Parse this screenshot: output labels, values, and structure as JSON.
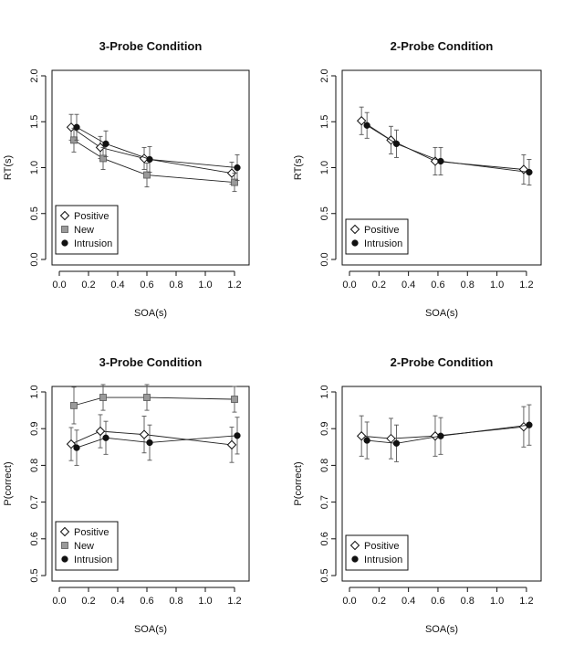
{
  "chart_data": [
    {
      "type": "line",
      "title": "3-Probe Condition",
      "xlabel": "SOA(s)",
      "ylabel": "RT(s)",
      "xlim": [
        0,
        1.25
      ],
      "ylim": [
        0,
        2.0
      ],
      "xticks": [
        0.0,
        0.2,
        0.4,
        0.6,
        0.8,
        1.0,
        1.2
      ],
      "xtick_labels": [
        "0.0",
        "0.2",
        "0.4",
        "0.6",
        "0.8",
        "1.0",
        "1.2"
      ],
      "yticks": [
        0.0,
        0.5,
        1.0,
        1.5,
        2.0
      ],
      "ytick_labels": [
        "0.0",
        "0.5",
        "1.0",
        "1.5",
        "2.0"
      ],
      "legend": {
        "position": "bottom-left",
        "entries": [
          "Positive",
          "New",
          "Intrusion"
        ]
      },
      "series": [
        {
          "name": "Positive",
          "marker": "diamond-open",
          "x": [
            0.1,
            0.3,
            0.6,
            1.2
          ],
          "values": [
            1.44,
            1.22,
            1.1,
            0.94
          ],
          "error": [
            0.14,
            0.12,
            0.12,
            0.12
          ]
        },
        {
          "name": "New",
          "marker": "square-gray",
          "x": [
            0.1,
            0.3,
            0.6,
            1.2
          ],
          "values": [
            1.3,
            1.1,
            0.92,
            0.84
          ],
          "error": [
            0.13,
            0.12,
            0.13,
            0.1
          ]
        },
        {
          "name": "Intrusion",
          "marker": "circle-filled",
          "x": [
            0.1,
            0.3,
            0.6,
            1.2
          ],
          "values": [
            1.44,
            1.26,
            1.09,
            1.0
          ],
          "error": [
            0.14,
            0.14,
            0.14,
            0.14
          ]
        }
      ]
    },
    {
      "type": "line",
      "title": "2-Probe Condition",
      "xlabel": "SOA(s)",
      "ylabel": "RT(s)",
      "xlim": [
        0,
        1.25
      ],
      "ylim": [
        0,
        2.0
      ],
      "xticks": [
        0.0,
        0.2,
        0.4,
        0.6,
        0.8,
        1.0,
        1.2
      ],
      "xtick_labels": [
        "0.0",
        "0.2",
        "0.4",
        "0.6",
        "0.8",
        "1.0",
        "1.2"
      ],
      "yticks": [
        0.0,
        0.5,
        1.0,
        1.5,
        2.0
      ],
      "ytick_labels": [
        "0.0",
        "0.5",
        "1.0",
        "1.5",
        "2.0"
      ],
      "legend": {
        "position": "bottom-left",
        "entries": [
          "Positive",
          "Intrusion"
        ]
      },
      "series": [
        {
          "name": "Positive",
          "marker": "diamond-open",
          "x": [
            0.1,
            0.3,
            0.6,
            1.2
          ],
          "values": [
            1.51,
            1.3,
            1.07,
            0.98
          ],
          "error": [
            0.15,
            0.15,
            0.15,
            0.16
          ]
        },
        {
          "name": "Intrusion",
          "marker": "circle-filled",
          "x": [
            0.1,
            0.3,
            0.6,
            1.2
          ],
          "values": [
            1.46,
            1.26,
            1.07,
            0.95
          ],
          "error": [
            0.14,
            0.15,
            0.15,
            0.14
          ]
        }
      ]
    },
    {
      "type": "line",
      "title": "3-Probe Condition",
      "xlabel": "SOA(s)",
      "ylabel": "P(correct)",
      "xlim": [
        0,
        1.25
      ],
      "ylim": [
        0.5,
        1.0
      ],
      "xticks": [
        0.0,
        0.2,
        0.4,
        0.6,
        0.8,
        1.0,
        1.2
      ],
      "xtick_labels": [
        "0.0",
        "0.2",
        "0.4",
        "0.6",
        "0.8",
        "1.0",
        "1.2"
      ],
      "yticks": [
        0.5,
        0.6,
        0.7,
        0.8,
        0.9,
        1.0
      ],
      "ytick_labels": [
        "0.5",
        "0.6",
        "0.7",
        "0.8",
        "0.9",
        "1.0"
      ],
      "legend": {
        "position": "bottom-left",
        "entries": [
          "Positive",
          "New",
          "Intrusion"
        ]
      },
      "series": [
        {
          "name": "Positive",
          "marker": "diamond-open",
          "x": [
            0.1,
            0.3,
            0.6,
            1.2
          ],
          "values": [
            0.858,
            0.893,
            0.884,
            0.856
          ],
          "error": [
            0.045,
            0.045,
            0.05,
            0.048
          ]
        },
        {
          "name": "New",
          "marker": "square-gray",
          "x": [
            0.1,
            0.3,
            0.6,
            1.2
          ],
          "values": [
            0.963,
            0.985,
            0.985,
            0.98
          ],
          "error": [
            0.05,
            0.035,
            0.035,
            0.035
          ]
        },
        {
          "name": "Intrusion",
          "marker": "circle-filled",
          "x": [
            0.1,
            0.3,
            0.6,
            1.2
          ],
          "values": [
            0.848,
            0.875,
            0.862,
            0.881
          ],
          "error": [
            0.048,
            0.045,
            0.048,
            0.05
          ]
        }
      ]
    },
    {
      "type": "line",
      "title": "2-Probe Condition",
      "xlabel": "SOA(s)",
      "ylabel": "P(correct)",
      "xlim": [
        0,
        1.25
      ],
      "ylim": [
        0.5,
        1.0
      ],
      "xticks": [
        0.0,
        0.2,
        0.4,
        0.6,
        0.8,
        1.0,
        1.2
      ],
      "xtick_labels": [
        "0.0",
        "0.2",
        "0.4",
        "0.6",
        "0.8",
        "1.0",
        "1.2"
      ],
      "yticks": [
        0.5,
        0.6,
        0.7,
        0.8,
        0.9,
        1.0
      ],
      "ytick_labels": [
        "0.5",
        "0.6",
        "0.7",
        "0.8",
        "0.9",
        "1.0"
      ],
      "legend": {
        "position": "bottom-left",
        "entries": [
          "Positive",
          "Intrusion"
        ]
      },
      "series": [
        {
          "name": "Positive",
          "marker": "diamond-open",
          "x": [
            0.1,
            0.3,
            0.6,
            1.2
          ],
          "values": [
            0.88,
            0.873,
            0.88,
            0.905
          ],
          "error": [
            0.055,
            0.055,
            0.055,
            0.055
          ]
        },
        {
          "name": "Intrusion",
          "marker": "circle-filled",
          "x": [
            0.1,
            0.3,
            0.6,
            1.2
          ],
          "values": [
            0.868,
            0.86,
            0.88,
            0.91
          ],
          "error": [
            0.05,
            0.05,
            0.05,
            0.055
          ]
        }
      ]
    }
  ],
  "colors": {
    "axis": "#111111",
    "line": "#222222",
    "error_bar": "#555555",
    "new_marker_fill": "#9a9a9a"
  }
}
